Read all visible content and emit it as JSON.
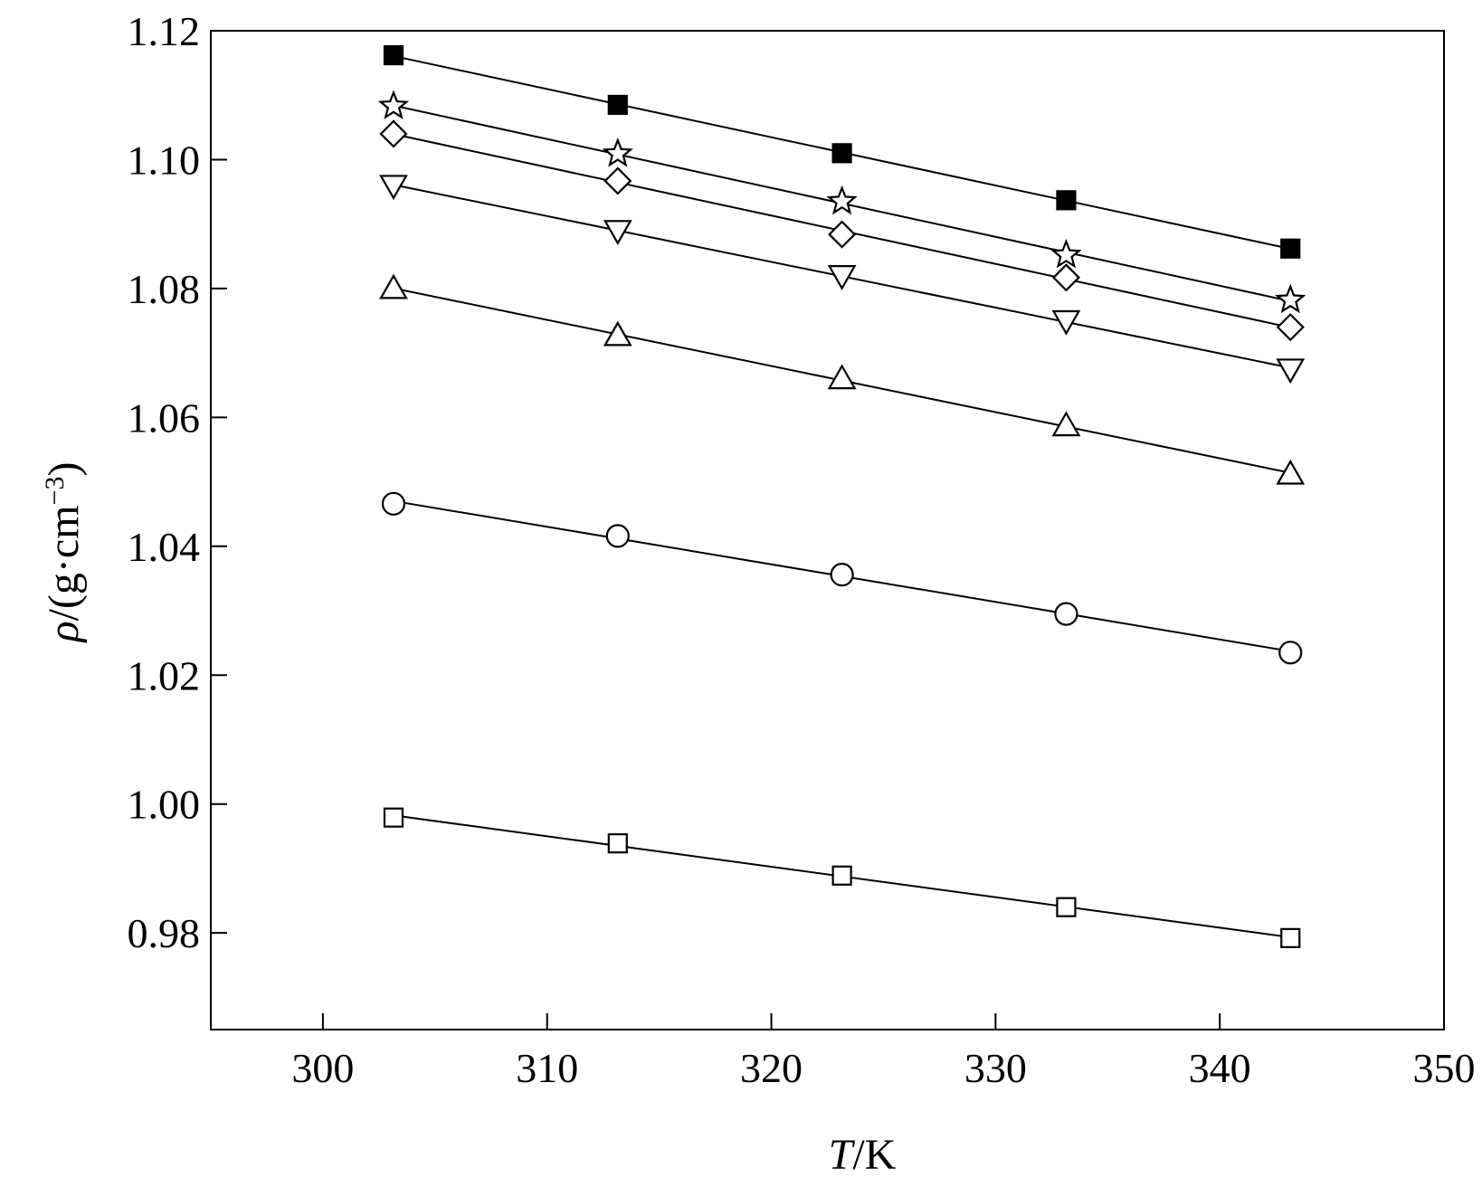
{
  "chart_data": {
    "type": "scatter",
    "title": "",
    "xlabel": "T/K",
    "ylabel": "ρ/(g·cm⁻³)",
    "xlabel_parts": {
      "symbol": "T",
      "unit": "/K"
    },
    "ylabel_parts": {
      "symbol": "ρ",
      "unit": "/(g·cm",
      "exponent": "−3",
      "close": ")"
    },
    "xlim": [
      295,
      350
    ],
    "ylim": [
      0.965,
      1.12
    ],
    "xticks": [
      300,
      310,
      320,
      330,
      340,
      350
    ],
    "xtick_labels": [
      "300",
      "310",
      "320",
      "330",
      "340",
      "350"
    ],
    "yticks": [
      0.98,
      1.0,
      1.02,
      1.04,
      1.06,
      1.08,
      1.1,
      1.12
    ],
    "ytick_labels": [
      "0.98",
      "1.00",
      "1.02",
      "1.04",
      "1.06",
      "1.08",
      "1.10",
      "1.12"
    ],
    "grid": false,
    "legend": "none",
    "x": [
      303.15,
      313.15,
      323.15,
      333.15,
      343.15
    ],
    "series": [
      {
        "marker": "filled-square",
        "values": [
          1.1162,
          1.1085,
          1.101,
          1.0937,
          1.0862
        ]
      },
      {
        "marker": "open-star",
        "values": [
          1.1083,
          1.1009,
          1.0935,
          1.0852,
          1.0782
        ]
      },
      {
        "marker": "open-diamond",
        "values": [
          1.104,
          1.0967,
          1.0884,
          1.0817,
          1.074
        ]
      },
      {
        "marker": "open-triangle-down",
        "values": [
          1.096,
          1.089,
          1.082,
          1.075,
          1.0675
        ]
      },
      {
        "marker": "open-triangle-up",
        "values": [
          1.08,
          1.0727,
          1.066,
          1.0587,
          1.0512
        ]
      },
      {
        "marker": "open-circle",
        "values": [
          1.0466,
          1.0416,
          1.0356,
          1.0295,
          1.0235
        ]
      },
      {
        "marker": "open-square",
        "values": [
          0.9979,
          0.9939,
          0.9889,
          0.984,
          0.9792
        ]
      }
    ],
    "colors": {
      "line": "#000000",
      "marker_stroke": "#000000",
      "marker_fill_open": "#ffffff",
      "marker_fill_filled": "#000000"
    }
  }
}
